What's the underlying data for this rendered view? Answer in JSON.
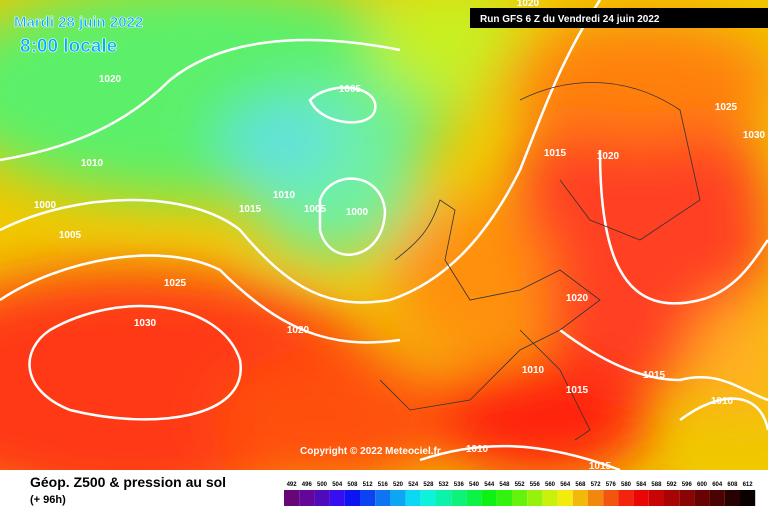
{
  "header": {
    "date": "Mardi 28 juin 2022",
    "time": "8:00 locale",
    "run": "Run GFS 6 Z du Vendredi 24 juin 2022"
  },
  "copyright": "Copyright © 2022 Meteociel.fr",
  "footer": {
    "title": "Géop. Z500 & pression au sol",
    "lead": "(+ 96h)"
  },
  "isobar_labels": [
    "1020",
    "1005",
    "1010",
    "1000",
    "1005",
    "1010",
    "1015",
    "1005",
    "1000",
    "1025",
    "1030",
    "1020",
    "1015",
    "1020",
    "1025",
    "1030",
    "1020",
    "1010",
    "1015",
    "1015",
    "1010",
    "1010",
    "1015",
    "1020"
  ],
  "legend": {
    "levels": [
      492,
      496,
      500,
      504,
      508,
      512,
      516,
      520,
      524,
      528,
      532,
      536,
      540,
      544,
      548,
      552,
      556,
      560,
      564,
      568,
      572,
      576,
      580,
      584,
      588,
      592,
      596,
      600,
      604,
      608,
      612
    ]
  }
}
